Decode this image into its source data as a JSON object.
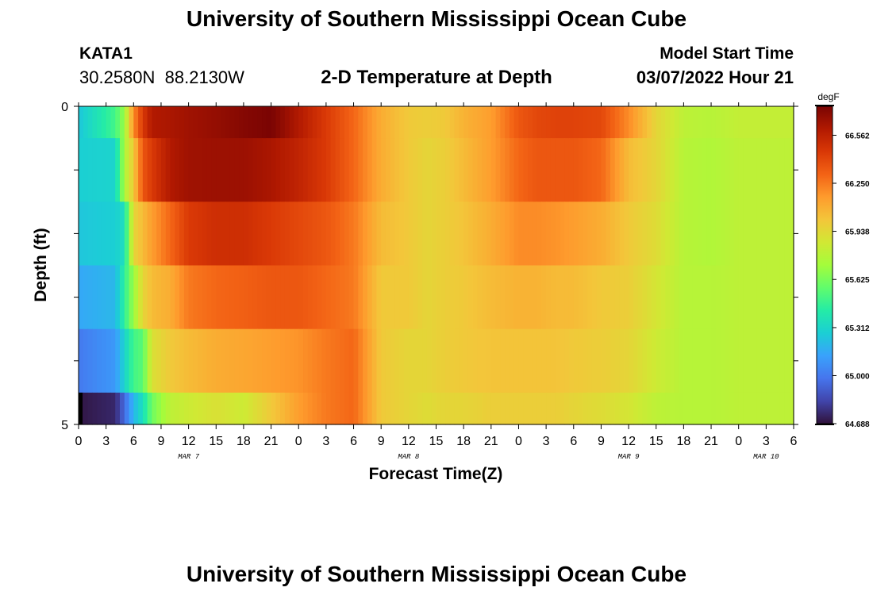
{
  "header": {
    "title": "University of Southern Mississippi Ocean Cube",
    "station_id": "KATA1",
    "station_coords": "30.2580N  88.2130W",
    "plot_title": "2-D Temperature at Depth",
    "model_start_label": "Model Start Time",
    "model_start_value": "03/07/2022 Hour 21"
  },
  "footer": {
    "title": "University of Southern Mississippi Ocean Cube"
  },
  "chart_data": {
    "type": "heatmap",
    "title": "2-D Temperature at Depth",
    "xlabel": "Forecast Time(Z)",
    "ylabel": "Depth (ft)",
    "x_unit": "hours since MAR 7 00Z",
    "xlim": [
      0,
      78
    ],
    "ylim": [
      0,
      5
    ],
    "y_tick_labels": [
      "0",
      "5"
    ],
    "x_tick_labels": [
      "0",
      "3",
      "6",
      "9",
      "12",
      "15",
      "18",
      "21",
      "0",
      "3",
      "6",
      "9",
      "12",
      "15",
      "18",
      "21",
      "0",
      "3",
      "6",
      "9",
      "12",
      "15",
      "18",
      "21",
      "0",
      "3",
      "6"
    ],
    "date_labels": [
      {
        "label": "MAR 7",
        "hour": 12
      },
      {
        "label": "MAR 8",
        "hour": 36
      },
      {
        "label": "MAR 9",
        "hour": 60
      },
      {
        "label": "MAR 10",
        "hour": 75
      }
    ],
    "colorbar": {
      "unit": "degF",
      "min": 64.688,
      "max": 66.75,
      "tick_labels": [
        "66.562",
        "66.250",
        "65.938",
        "65.625",
        "65.312",
        "65.000",
        "64.688"
      ],
      "colors": [
        "#30123b",
        "#4145ab",
        "#4675ed",
        "#39a2fc",
        "#1bcfd4",
        "#24eca6",
        "#61fc6c",
        "#a4fc3b",
        "#d1e834",
        "#f3c63a",
        "#fe9b2d",
        "#f36315",
        "#d93806",
        "#b11901",
        "#7a0403"
      ]
    },
    "depth_layers": [
      "0-0.5 ft",
      "0.5-1.5 ft",
      "1.5-2.5 ft",
      "2.5-3.5 ft",
      "3.5-4.5 ft",
      "4.5-5 ft"
    ],
    "key_hours": [
      0,
      4,
      5,
      6,
      7,
      8,
      10,
      12,
      15,
      18,
      21,
      24,
      27,
      30,
      33,
      36,
      38,
      40,
      42,
      45,
      48,
      50,
      52,
      54,
      57,
      60,
      63,
      66,
      69,
      72,
      78
    ],
    "temperature_degF": [
      [
        65.25,
        65.5,
        65.7,
        66.2,
        66.45,
        66.6,
        66.62,
        66.65,
        66.68,
        66.72,
        66.75,
        66.6,
        66.45,
        66.3,
        66.1,
        66.0,
        65.98,
        66.0,
        66.08,
        66.15,
        66.35,
        66.4,
        66.42,
        66.42,
        66.4,
        66.2,
        65.95,
        65.8,
        65.78,
        65.82,
        65.82
      ],
      [
        65.28,
        65.3,
        65.75,
        66.0,
        66.35,
        66.45,
        66.6,
        66.65,
        66.66,
        66.66,
        66.62,
        66.55,
        66.45,
        66.3,
        66.1,
        66.0,
        65.95,
        65.98,
        66.05,
        66.15,
        66.3,
        66.35,
        66.35,
        66.35,
        66.3,
        66.05,
        65.95,
        65.78,
        65.76,
        65.8,
        65.8
      ],
      [
        65.25,
        65.28,
        65.35,
        65.95,
        66.05,
        66.15,
        66.3,
        66.45,
        66.5,
        66.5,
        66.45,
        66.4,
        66.35,
        66.25,
        66.05,
        66.0,
        65.95,
        65.98,
        66.02,
        66.1,
        66.2,
        66.2,
        66.18,
        66.15,
        66.1,
        66.0,
        65.92,
        65.78,
        65.76,
        65.8,
        65.8
      ],
      [
        65.15,
        65.2,
        65.45,
        65.7,
        65.95,
        66.05,
        66.1,
        66.25,
        66.3,
        66.32,
        66.35,
        66.35,
        66.3,
        66.25,
        66.0,
        66.0,
        65.95,
        65.98,
        66.0,
        66.05,
        66.08,
        66.08,
        66.05,
        66.05,
        66.0,
        65.98,
        65.88,
        65.78,
        65.78,
        65.8,
        65.8
      ],
      [
        65.0,
        65.1,
        65.3,
        65.5,
        65.55,
        65.9,
        66.0,
        66.05,
        66.1,
        66.12,
        66.15,
        66.18,
        66.25,
        66.3,
        66.0,
        65.95,
        65.95,
        65.98,
        66.0,
        66.02,
        66.02,
        66.02,
        66.02,
        66.0,
        65.98,
        65.95,
        65.85,
        65.78,
        65.78,
        65.8,
        65.8
      ],
      [
        64.7,
        64.75,
        64.95,
        65.2,
        65.35,
        65.6,
        65.8,
        65.85,
        65.9,
        65.85,
        66.0,
        66.15,
        66.25,
        66.3,
        66.0,
        65.95,
        65.92,
        65.95,
        65.95,
        65.98,
        65.98,
        65.98,
        65.98,
        65.95,
        65.92,
        65.88,
        65.8,
        65.78,
        65.78,
        65.8,
        65.8
      ]
    ]
  }
}
